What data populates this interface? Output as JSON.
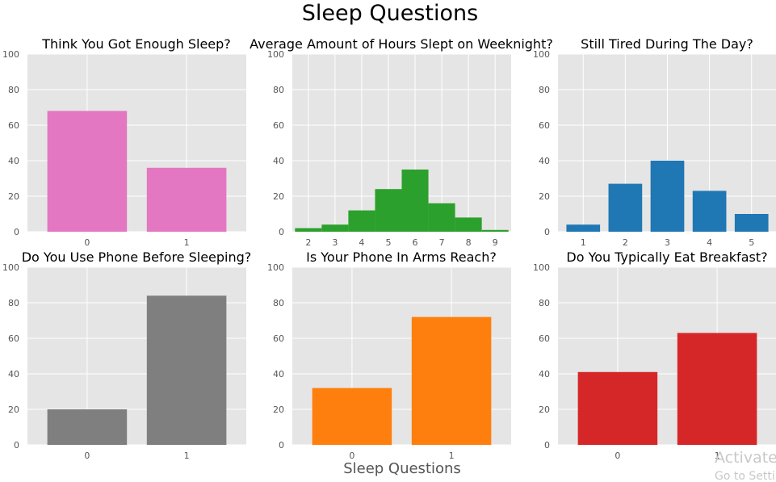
{
  "figure": {
    "title": "Sleep Questions",
    "xlabel": "Sleep Questions",
    "watermark": {
      "line1": "Activate",
      "line2": "Go to Settir"
    }
  },
  "chart_data": [
    {
      "type": "bar",
      "title": "Think You Got Enough Sleep?",
      "categories": [
        "0",
        "1"
      ],
      "values": [
        68,
        36
      ],
      "ylim": [
        0,
        100
      ],
      "yticks": [
        0,
        20,
        40,
        60,
        80,
        100
      ],
      "color": "#e377c2",
      "grid": true
    },
    {
      "type": "bar",
      "subtype": "histogram",
      "title": "Average Amount of Hours Slept on Weeknight?",
      "bin_edges": [
        1.5,
        2.5,
        3.5,
        4.5,
        5.5,
        6.5,
        7.5,
        8.5,
        9.5
      ],
      "values": [
        2,
        4,
        12,
        24,
        35,
        16,
        8,
        1
      ],
      "xlim": [
        1.4,
        9.6
      ],
      "xticks": [
        2,
        3,
        4,
        5,
        6,
        7,
        8,
        9
      ],
      "ylim": [
        0,
        100
      ],
      "yticks": [
        0,
        20,
        40,
        60,
        80,
        100
      ],
      "color": "#2ca02c",
      "grid": true
    },
    {
      "type": "bar",
      "title": "Still Tired During The Day?",
      "categories": [
        "1",
        "2",
        "3",
        "4",
        "5"
      ],
      "values": [
        4,
        27,
        40,
        23,
        10
      ],
      "ylim": [
        0,
        100
      ],
      "yticks": [
        0,
        20,
        40,
        60,
        80,
        100
      ],
      "color": "#1f77b4",
      "grid": true
    },
    {
      "type": "bar",
      "title": "Do You Use Phone Before Sleeping?",
      "categories": [
        "0",
        "1"
      ],
      "values": [
        20,
        84
      ],
      "ylim": [
        0,
        100
      ],
      "yticks": [
        0,
        20,
        40,
        60,
        80,
        100
      ],
      "color": "#7f7f7f",
      "grid": true
    },
    {
      "type": "bar",
      "title": "Is Your Phone In Arms Reach?",
      "categories": [
        "0",
        "1"
      ],
      "values": [
        32,
        72
      ],
      "ylim": [
        0,
        100
      ],
      "yticks": [
        0,
        20,
        40,
        60,
        80,
        100
      ],
      "color": "#ff7f0e",
      "grid": true
    },
    {
      "type": "bar",
      "title": "Do You Typically Eat Breakfast?",
      "categories": [
        "0",
        "1"
      ],
      "values": [
        41,
        63
      ],
      "ylim": [
        0,
        100
      ],
      "yticks": [
        0,
        20,
        40,
        60,
        80,
        100
      ],
      "color": "#d62728",
      "grid": true
    }
  ]
}
